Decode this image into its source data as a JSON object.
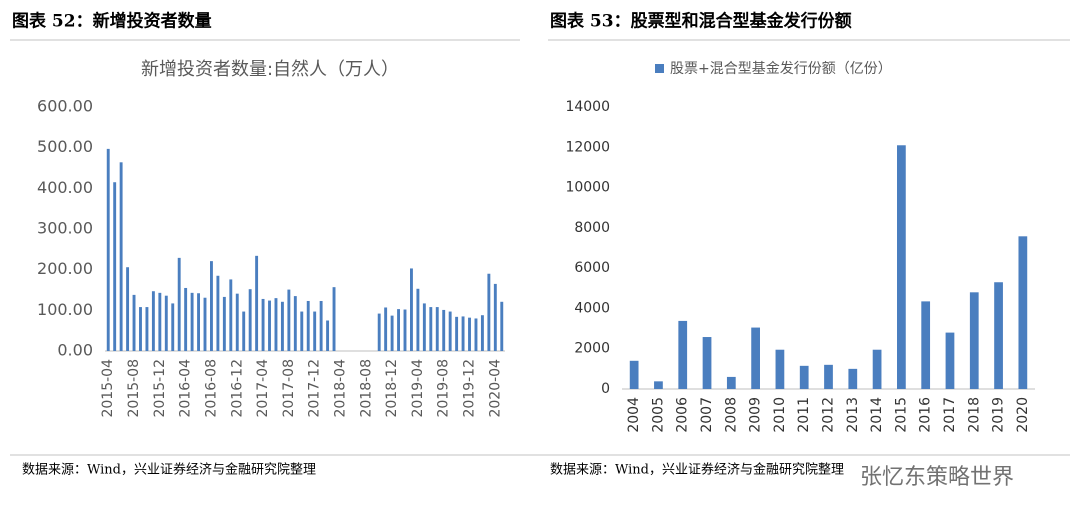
{
  "chart_data": [
    {
      "type": "bar",
      "figure_title": "图表 52：新增投资者数量",
      "title": "新增投资者数量:自然人（万人）",
      "source": "数据来源：Wind，兴业证券经济与金融研究院整理",
      "color": "#4a7ebf",
      "categories": [
        "2015-04",
        null,
        null,
        null,
        "2015-08",
        null,
        null,
        null,
        "2015-12",
        null,
        null,
        null,
        "2016-04",
        null,
        null,
        null,
        "2016-08",
        null,
        null,
        null,
        "2016-12",
        null,
        null,
        null,
        "2017-04",
        null,
        null,
        null,
        "2017-08",
        null,
        null,
        null,
        "2017-12",
        null,
        null,
        null,
        "2018-04",
        null,
        null,
        null,
        "2018-08",
        null,
        null,
        null,
        "2018-12",
        null,
        null,
        null,
        "2019-04",
        null,
        null,
        null,
        "2019-08",
        null,
        null,
        null,
        "2019-12",
        null,
        null,
        null,
        "2020-04",
        null
      ],
      "values": [
        497,
        415,
        464,
        206,
        138,
        108,
        108,
        147,
        143,
        136,
        117,
        229,
        155,
        143,
        142,
        131,
        221,
        185,
        133,
        176,
        141,
        97,
        152,
        234,
        128,
        124,
        130,
        121,
        151,
        135,
        97,
        123,
        97,
        123,
        75,
        157,
        null,
        null,
        null,
        null,
        null,
        null,
        92,
        107,
        87,
        103,
        102,
        203,
        153,
        117,
        108,
        108,
        101,
        97,
        84,
        85,
        82,
        80,
        88,
        190,
        165,
        121
      ],
      "ylim": [
        0,
        600
      ],
      "yticks": [
        {
          "value": 0,
          "label": "0.00"
        },
        {
          "value": 100,
          "label": "100.00"
        },
        {
          "value": 200,
          "label": "200.00"
        },
        {
          "value": 300,
          "label": "300.00"
        },
        {
          "value": 400,
          "label": "400.00"
        },
        {
          "value": 500,
          "label": "500.00"
        },
        {
          "value": 600,
          "label": "600.00"
        }
      ]
    },
    {
      "type": "bar",
      "figure_title": "图表 53：股票型和混合型基金发行份额",
      "source": "数据来源：Wind，兴业证券经济与金融研究院整理",
      "color": "#4a7ebf",
      "categories": [
        "2004",
        "2005",
        "2006",
        "2007",
        "2008",
        "2009",
        "2010",
        "2011",
        "2012",
        "2013",
        "2014",
        "2015",
        "2016",
        "2017",
        "2018",
        "2019",
        "2020"
      ],
      "series": [
        {
          "name": "股票+混合型基金发行份额（亿份）",
          "color": "#4a7ebf",
          "values": [
            1400,
            380,
            3380,
            2580,
            600,
            3050,
            1950,
            1150,
            1200,
            1000,
            1950,
            12100,
            4350,
            2800,
            4800,
            5300,
            7580
          ]
        }
      ],
      "ylim": [
        0,
        14000
      ],
      "yticks": [
        0,
        2000,
        4000,
        6000,
        8000,
        10000,
        12000,
        14000
      ]
    }
  ],
  "watermark": "张忆东策略世界"
}
